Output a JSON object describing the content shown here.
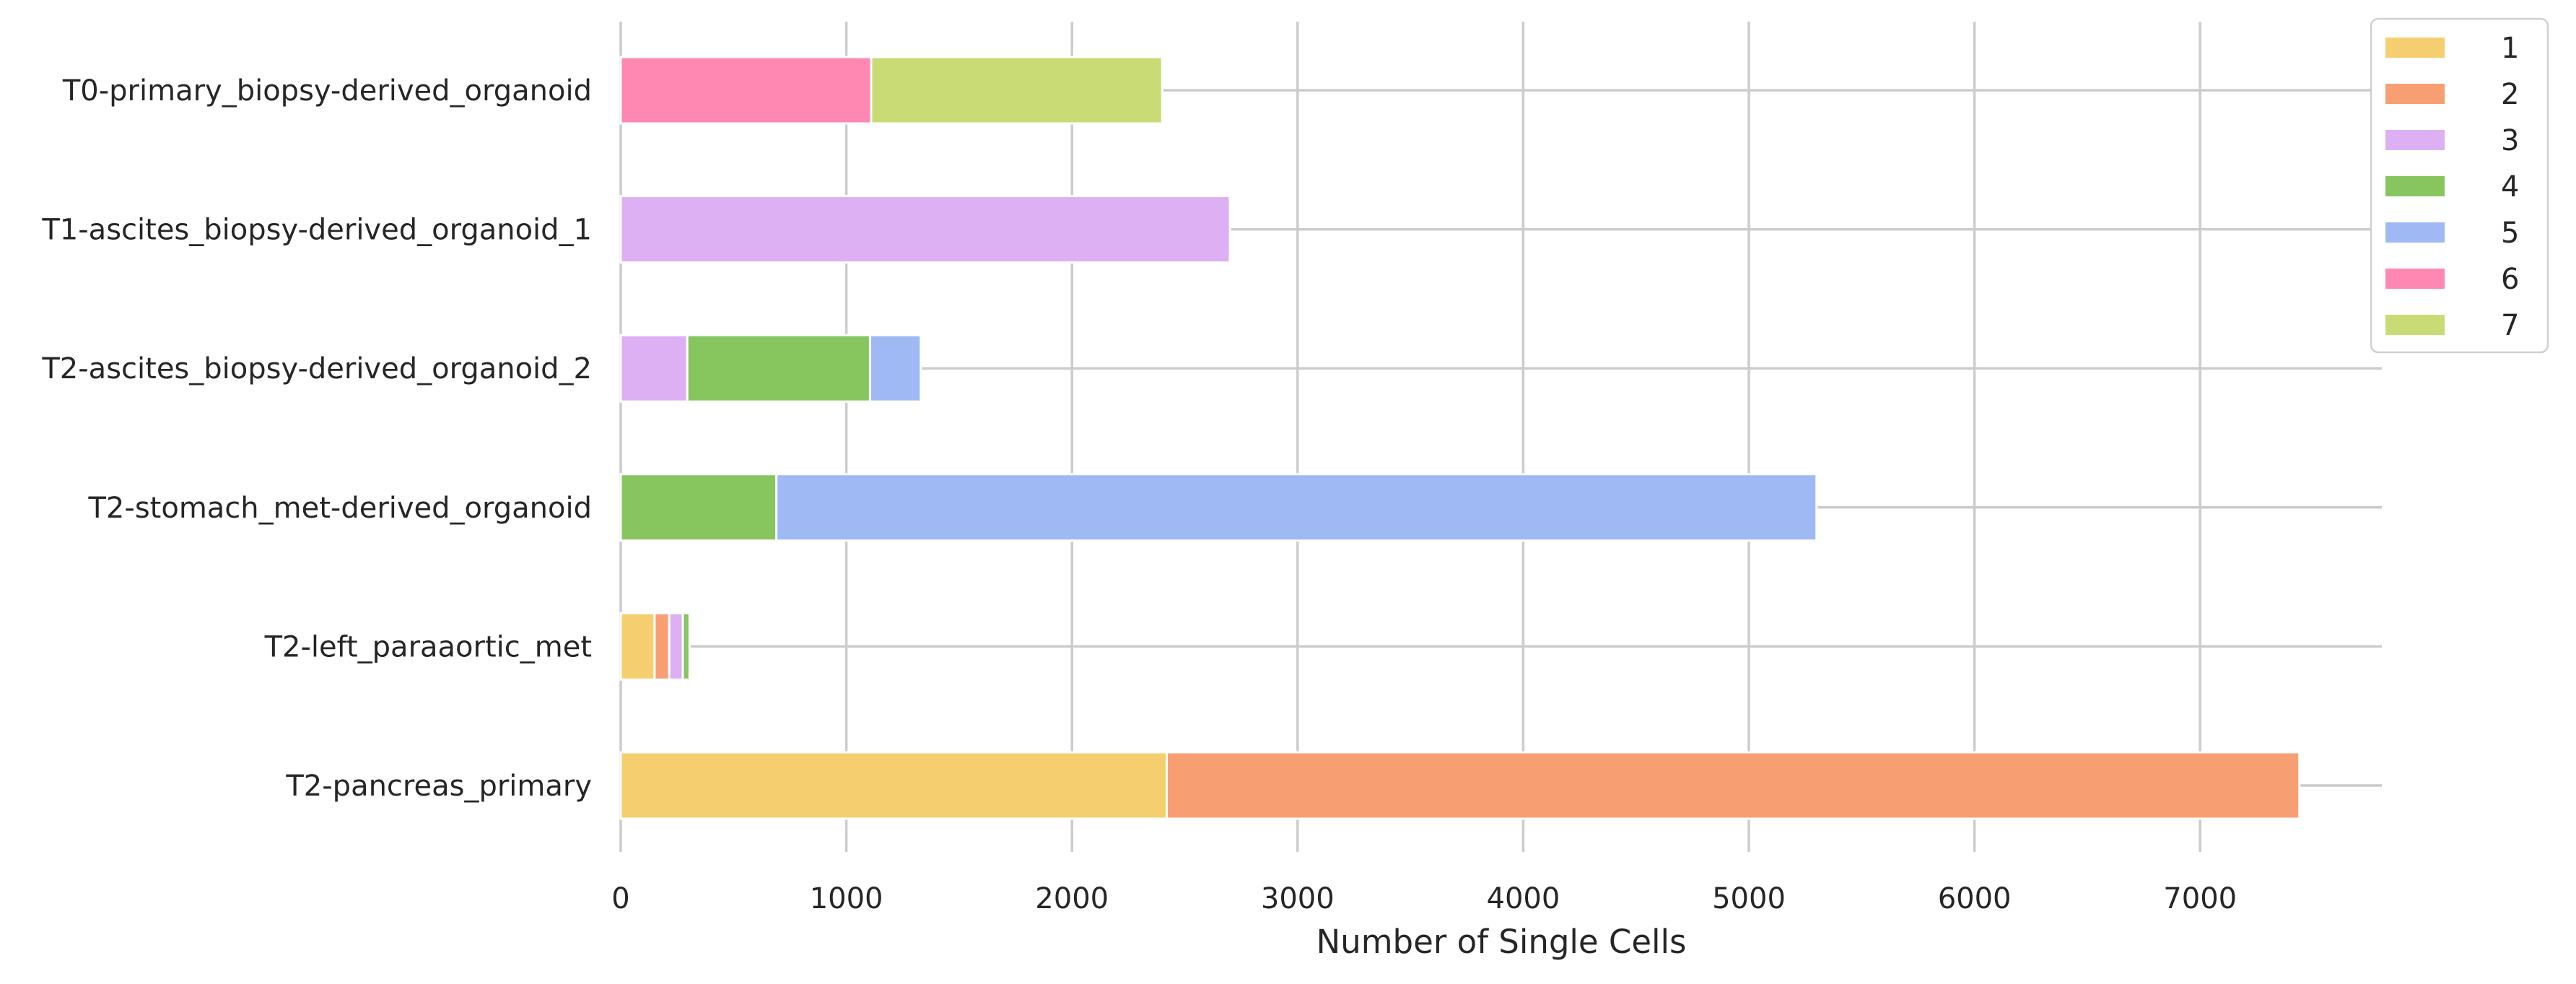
{
  "chart_data": {
    "type": "bar",
    "orientation": "horizontal",
    "stacked": true,
    "title": "",
    "xlabel": "Number of Single Cells",
    "ylabel": "",
    "xlim": [
      0,
      7800
    ],
    "xticks": [
      0,
      1000,
      2000,
      3000,
      4000,
      5000,
      6000,
      7000
    ],
    "grid": "on",
    "legend_position": "top-right (outside plot)",
    "categories": [
      "T0-primary_biopsy-derived_organoid",
      "T1-ascites_biopsy-derived_organoid_1",
      "T2-ascites_biopsy-derived_organoid_2",
      "T2-stomach_met-derived_organoid",
      "T2-left_paraaortic_met",
      "T2-pancreas_primary"
    ],
    "series": [
      {
        "name": "1",
        "color": "#f5cf6f",
        "values": [
          0,
          0,
          0,
          0,
          150,
          2420
        ]
      },
      {
        "name": "2",
        "color": "#f89e73",
        "values": [
          0,
          0,
          0,
          0,
          65,
          5020
        ]
      },
      {
        "name": "3",
        "color": "#dcb0f2",
        "values": [
          0,
          2700,
          295,
          0,
          60,
          0
        ]
      },
      {
        "name": "4",
        "color": "#87c55f",
        "values": [
          0,
          0,
          810,
          690,
          30,
          0
        ]
      },
      {
        "name": "5",
        "color": "#9eb9f3",
        "values": [
          0,
          0,
          225,
          4610,
          0,
          0
        ]
      },
      {
        "name": "6",
        "color": "#fe88b1",
        "values": [
          1110,
          0,
          0,
          0,
          0,
          0
        ]
      },
      {
        "name": "7",
        "color": "#c9db74",
        "values": [
          1290,
          0,
          0,
          0,
          0,
          0
        ]
      }
    ]
  }
}
